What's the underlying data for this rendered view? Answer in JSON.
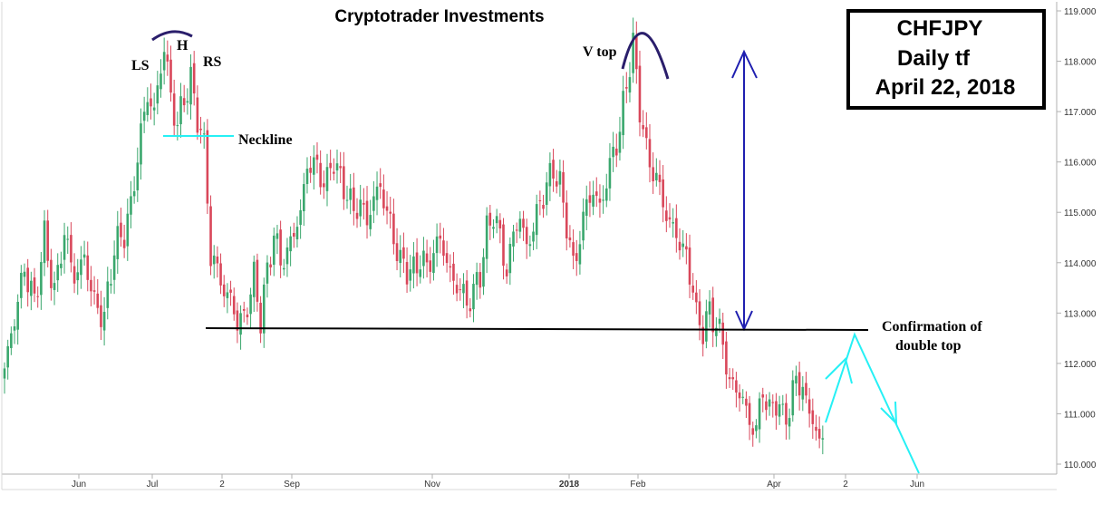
{
  "chart_data": {
    "type": "candlestick",
    "title": "Cryptotrader Investments",
    "info_box": [
      "CHFJPY",
      "Daily tf",
      "April 22, 2018"
    ],
    "y_axis": {
      "position": "right",
      "ylim": [
        109.85,
        119.1
      ],
      "ticks": [
        "110.000",
        "111.000",
        "112.000",
        "113.000",
        "114.000",
        "115.000",
        "116.000",
        "117.000",
        "118.000",
        "119.000"
      ]
    },
    "x_axis": {
      "ticks": [
        {
          "label": "Jun",
          "bold": false
        },
        {
          "label": "Jul",
          "bold": false
        },
        {
          "label": "2",
          "bold": false
        },
        {
          "label": "Sep",
          "bold": false
        },
        {
          "label": "Nov",
          "bold": false
        },
        {
          "label": "2018",
          "bold": true
        },
        {
          "label": "Feb",
          "bold": false
        },
        {
          "label": "Apr",
          "bold": false
        },
        {
          "label": "2",
          "bold": false
        },
        {
          "label": "Jun",
          "bold": false
        }
      ]
    },
    "grid": false,
    "candle_colors": {
      "up": "#3aa76d",
      "down": "#d9475a"
    },
    "price_path": [
      [
        0,
        111.9
      ],
      [
        3,
        112.9
      ],
      [
        6,
        113.9
      ],
      [
        9,
        113.2
      ],
      [
        12,
        114.5
      ],
      [
        15,
        113.4
      ],
      [
        18,
        114.6
      ],
      [
        21,
        113.7
      ],
      [
        24,
        114.1
      ],
      [
        27,
        113.2
      ],
      [
        30,
        112.9
      ],
      [
        33,
        114.3
      ],
      [
        36,
        114.6
      ],
      [
        38,
        115.1
      ],
      [
        41,
        116.6
      ],
      [
        43,
        117.3
      ],
      [
        45,
        117.0
      ],
      [
        48,
        118.3
      ],
      [
        50,
        117.3
      ],
      [
        52,
        116.7
      ],
      [
        54,
        117.3
      ],
      [
        56,
        117.6
      ],
      [
        58,
        116.9
      ],
      [
        60,
        116.3
      ],
      [
        61,
        115.3
      ],
      [
        62,
        114.1
      ],
      [
        64,
        113.9
      ],
      [
        66,
        113.4
      ],
      [
        68,
        113.3
      ],
      [
        70,
        112.8
      ],
      [
        72,
        112.9
      ],
      [
        75,
        113.7
      ],
      [
        77,
        112.9
      ],
      [
        79,
        113.8
      ],
      [
        81,
        114.6
      ],
      [
        83,
        114.0
      ],
      [
        85,
        114.2
      ],
      [
        87,
        114.6
      ],
      [
        89,
        115.0
      ],
      [
        91,
        115.9
      ],
      [
        93,
        116.0
      ],
      [
        95,
        115.7
      ],
      [
        97,
        115.6
      ],
      [
        99,
        116.1
      ],
      [
        101,
        115.6
      ],
      [
        103,
        115.4
      ],
      [
        105,
        115.0
      ],
      [
        107,
        115.2
      ],
      [
        109,
        114.8
      ],
      [
        111,
        115.3
      ],
      [
        113,
        115.5
      ],
      [
        115,
        115.0
      ],
      [
        117,
        114.5
      ],
      [
        119,
        114.0
      ],
      [
        121,
        113.9
      ],
      [
        123,
        113.8
      ],
      [
        125,
        114.1
      ],
      [
        127,
        113.9
      ],
      [
        129,
        114.2
      ],
      [
        131,
        114.5
      ],
      [
        133,
        114.0
      ],
      [
        135,
        113.6
      ],
      [
        137,
        113.5
      ],
      [
        139,
        113.2
      ],
      [
        141,
        113.4
      ],
      [
        143,
        113.8
      ],
      [
        145,
        114.6
      ],
      [
        147,
        115.0
      ],
      [
        149,
        114.5
      ],
      [
        151,
        113.8
      ],
      [
        153,
        114.6
      ],
      [
        155,
        114.9
      ],
      [
        157,
        114.3
      ],
      [
        159,
        114.7
      ],
      [
        161,
        115.2
      ],
      [
        163,
        115.5
      ],
      [
        165,
        115.9
      ],
      [
        167,
        115.5
      ],
      [
        169,
        114.8
      ],
      [
        171,
        113.9
      ],
      [
        173,
        114.5
      ],
      [
        175,
        115.2
      ],
      [
        177,
        115.4
      ],
      [
        179,
        115.1
      ],
      [
        181,
        115.6
      ],
      [
        183,
        116.2
      ],
      [
        185,
        116.6
      ],
      [
        187,
        117.6
      ],
      [
        189,
        118.3
      ],
      [
        191,
        117.1
      ],
      [
        193,
        116.2
      ],
      [
        195,
        115.8
      ],
      [
        197,
        115.5
      ],
      [
        199,
        114.9
      ],
      [
        201,
        114.7
      ],
      [
        203,
        114.4
      ],
      [
        205,
        114.1
      ],
      [
        207,
        113.5
      ],
      [
        208,
        112.9
      ],
      [
        210,
        112.7
      ],
      [
        212,
        113.0
      ],
      [
        214,
        112.8
      ],
      [
        216,
        112.4
      ],
      [
        218,
        111.6
      ],
      [
        220,
        111.5
      ],
      [
        222,
        111.3
      ],
      [
        224,
        110.8
      ],
      [
        226,
        110.7
      ],
      [
        228,
        111.5
      ],
      [
        230,
        111.0
      ],
      [
        232,
        111.3
      ],
      [
        234,
        110.9
      ],
      [
        236,
        111.1
      ],
      [
        238,
        111.7
      ],
      [
        240,
        111.5
      ],
      [
        241,
        111.2
      ],
      [
        243,
        110.9
      ],
      [
        245,
        110.4
      ],
      [
        246,
        110.5
      ]
    ],
    "annotations": {
      "LS": "LS",
      "H": "H",
      "RS": "RS",
      "neckline": "Neckline",
      "v_top": "V top",
      "confirmation_line1": "Confirmation of",
      "confirmation_line2": "double top"
    },
    "levels": {
      "neckline_price": 116.5,
      "double_top_confirmation_price": 112.65
    },
    "colors": {
      "title": "#000000",
      "neckline": "#26f0f5",
      "arc": "#2a1e6b",
      "target_arrow": "#1f1fb0",
      "projection": "#26f0f5",
      "confirmation_line": "#000000",
      "axis": "#b0b0b0"
    }
  }
}
